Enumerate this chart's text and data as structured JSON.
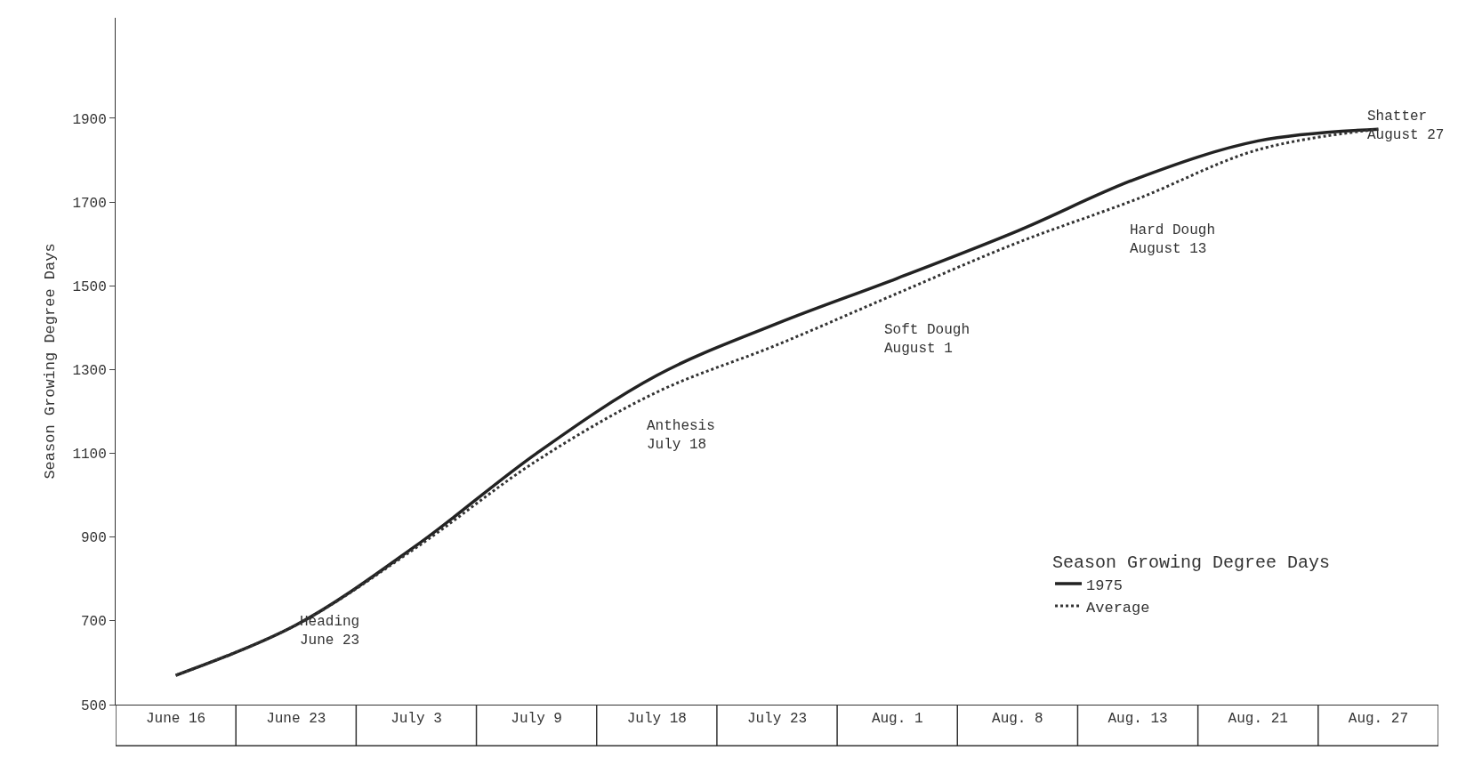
{
  "chart_data": {
    "type": "line",
    "ylabel": "Season Growing Degree Days",
    "legend_title": "Season Growing Degree Days",
    "categories": [
      "June 16",
      "June 23",
      "July 3",
      "July 9",
      "July 18",
      "July 23",
      "Aug. 1",
      "Aug. 8",
      "Aug. 13",
      "Aug. 21",
      "Aug. 27"
    ],
    "series": [
      {
        "name": "1975",
        "color": "#222222",
        "line_style": "solid",
        "values": [
          570,
          690,
          880,
          1100,
          1286,
          1410,
          1518,
          1631,
          1757,
          1846,
          1874
        ]
      },
      {
        "name": "Average",
        "color": "#333333",
        "line_style": "dotted",
        "values": [
          570,
          690,
          875,
          1082,
          1246,
          1359,
          1482,
          1603,
          1708,
          1825,
          1874
        ]
      }
    ],
    "ylim": [
      500,
      2140
    ],
    "yticks": [
      500,
      700,
      900,
      1100,
      1300,
      1500,
      1700,
      1900
    ],
    "annotations": [
      "Heading\nJune 23",
      "Anthesis\nJuly 18",
      "Soft Dough\nAugust 1",
      "Hard Dough\nAugust 13",
      "Shatter\nAugust 27"
    ],
    "grid": false,
    "legend": "bottom right",
    "marker": "none"
  }
}
